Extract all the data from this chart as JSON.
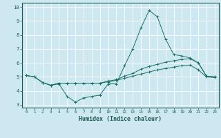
{
  "xlabel": "Humidex (Indice chaleur)",
  "ylabel": "",
  "bg_color": "#cde8f0",
  "line_color": "#1a7060",
  "grid_color": "#ffffff",
  "xlim": [
    -0.5,
    23.5
  ],
  "ylim": [
    2.8,
    10.3
  ],
  "yticks": [
    3,
    4,
    5,
    6,
    7,
    8,
    9,
    10
  ],
  "xticks": [
    0,
    1,
    2,
    3,
    4,
    5,
    6,
    7,
    8,
    9,
    10,
    11,
    12,
    13,
    14,
    15,
    16,
    17,
    18,
    19,
    20,
    21,
    22,
    23
  ],
  "series1": {
    "x": [
      0,
      1,
      2,
      3,
      4,
      5,
      6,
      7,
      8,
      9,
      10,
      11,
      12,
      13,
      14,
      15,
      16,
      17,
      18,
      19,
      20,
      21,
      22,
      23
    ],
    "y": [
      5.1,
      5.0,
      4.6,
      4.4,
      4.5,
      3.6,
      3.2,
      3.5,
      3.6,
      3.7,
      4.5,
      4.5,
      5.8,
      7.0,
      8.5,
      9.75,
      9.3,
      7.7,
      6.6,
      6.5,
      6.35,
      6.0,
      5.05,
      5.0
    ]
  },
  "series2": {
    "x": [
      0,
      1,
      2,
      3,
      4,
      5,
      6,
      7,
      8,
      9,
      10,
      11,
      12,
      13,
      14,
      15,
      16,
      17,
      18,
      19,
      20,
      21,
      22,
      23
    ],
    "y": [
      5.1,
      5.0,
      4.6,
      4.4,
      4.55,
      4.55,
      4.55,
      4.55,
      4.55,
      4.55,
      4.7,
      4.8,
      5.05,
      5.25,
      5.55,
      5.75,
      5.9,
      6.05,
      6.15,
      6.25,
      6.3,
      6.0,
      5.05,
      5.0
    ]
  },
  "series3": {
    "x": [
      0,
      1,
      2,
      3,
      4,
      5,
      6,
      7,
      8,
      9,
      10,
      11,
      12,
      13,
      14,
      15,
      16,
      17,
      18,
      19,
      20,
      21,
      22,
      23
    ],
    "y": [
      5.1,
      5.0,
      4.6,
      4.4,
      4.55,
      4.55,
      4.55,
      4.55,
      4.55,
      4.55,
      4.65,
      4.75,
      4.9,
      5.05,
      5.2,
      5.35,
      5.5,
      5.6,
      5.7,
      5.8,
      5.85,
      5.5,
      5.0,
      4.95
    ]
  }
}
